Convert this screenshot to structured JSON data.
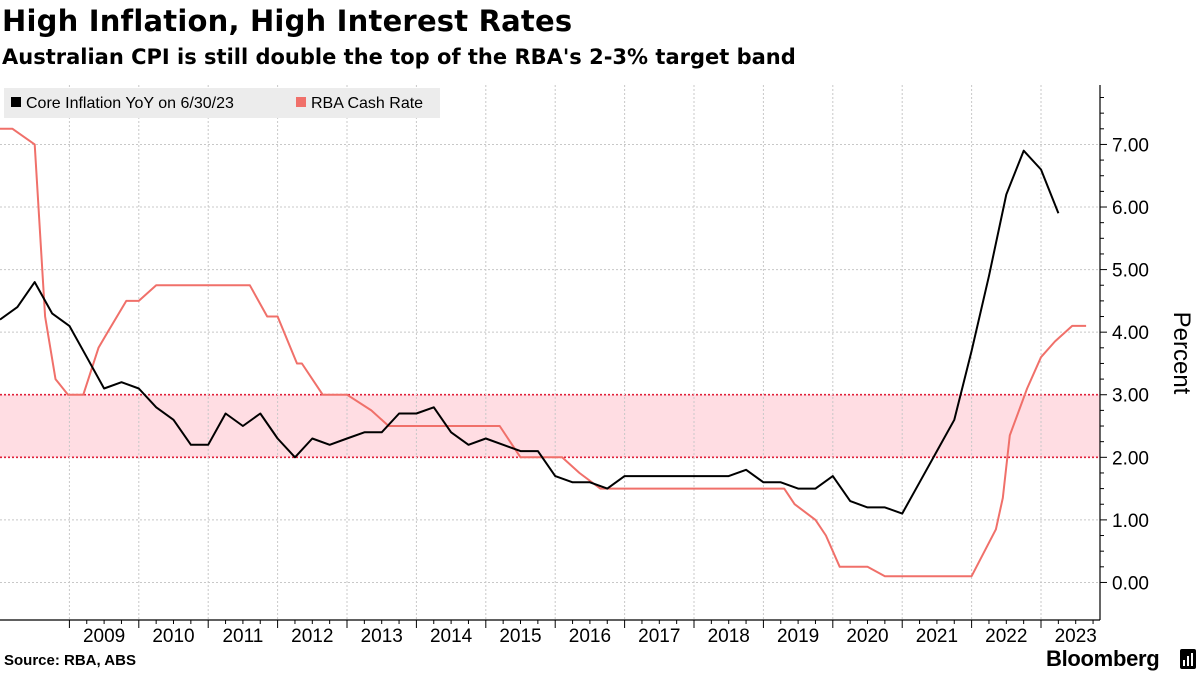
{
  "title": "High Inflation, High Interest Rates",
  "subtitle": "Australian CPI is still double the top of the RBA's 2-3% target band",
  "source": "Source: RBA, ABS",
  "brand": "Bloomberg",
  "colors": {
    "core_inflation": "#000000",
    "cash_rate": "#f0706a",
    "target_band": "#ffdde3",
    "target_band_edge": "#e0203a",
    "grid": "#c8c8c8",
    "legend_bg": "#ececec"
  },
  "chart_data": {
    "type": "line",
    "title": "High Inflation, High Interest Rates",
    "subtitle": "Australian CPI is still double the top of the RBA's 2-3% target band",
    "xlabel": "",
    "ylabel": "Percent",
    "ylim": [
      -0.6,
      7.95
    ],
    "xlim": [
      2008.0,
      2023.85
    ],
    "y_ticks": [
      0,
      1,
      2,
      3,
      4,
      5,
      6,
      7
    ],
    "y_tick_labels": [
      "0.00",
      "1.00",
      "2.00",
      "3.00",
      "4.00",
      "5.00",
      "6.00",
      "7.00"
    ],
    "x_ticks": [
      2009,
      2010,
      2011,
      2012,
      2013,
      2014,
      2015,
      2016,
      2017,
      2018,
      2019,
      2020,
      2021,
      2022,
      2023
    ],
    "x_tick_labels": [
      "2009",
      "2010",
      "2011",
      "2012",
      "2013",
      "2014",
      "2015",
      "2016",
      "2017",
      "2018",
      "2019",
      "2020",
      "2021",
      "2022",
      "2023"
    ],
    "y_axis_side": "right",
    "grid": true,
    "legend_position": "top-left",
    "target_band": [
      2,
      3
    ],
    "series": [
      {
        "name": "Core Inflation YoY on 6/30/23",
        "x": [
          2008.0,
          2008.25,
          2008.5,
          2008.75,
          2009.0,
          2009.25,
          2009.5,
          2009.75,
          2010.0,
          2010.25,
          2010.5,
          2010.75,
          2011.0,
          2011.25,
          2011.5,
          2011.75,
          2012.0,
          2012.25,
          2012.5,
          2012.75,
          2013.0,
          2013.25,
          2013.5,
          2013.75,
          2014.0,
          2014.25,
          2014.5,
          2014.75,
          2015.0,
          2015.25,
          2015.5,
          2015.75,
          2016.0,
          2016.25,
          2016.5,
          2016.75,
          2017.0,
          2017.25,
          2017.5,
          2017.75,
          2018.0,
          2018.25,
          2018.5,
          2018.75,
          2019.0,
          2019.25,
          2019.5,
          2019.75,
          2020.0,
          2020.25,
          2020.5,
          2020.75,
          2021.0,
          2021.25,
          2021.5,
          2021.75,
          2022.0,
          2022.25,
          2022.5,
          2022.75,
          2023.0,
          2023.25
        ],
        "y": [
          4.2,
          4.4,
          4.8,
          4.3,
          4.1,
          3.6,
          3.1,
          3.2,
          3.1,
          2.8,
          2.6,
          2.2,
          2.2,
          2.7,
          2.5,
          2.7,
          2.3,
          2.0,
          2.3,
          2.2,
          2.3,
          2.4,
          2.4,
          2.7,
          2.7,
          2.8,
          2.4,
          2.2,
          2.3,
          2.2,
          2.1,
          2.1,
          1.7,
          1.6,
          1.6,
          1.5,
          1.7,
          1.7,
          1.7,
          1.7,
          1.7,
          1.7,
          1.7,
          1.8,
          1.6,
          1.6,
          1.5,
          1.5,
          1.7,
          1.3,
          1.2,
          1.2,
          1.1,
          1.6,
          2.1,
          2.6,
          3.7,
          4.9,
          6.2,
          6.9,
          6.6,
          5.9
        ]
      },
      {
        "name": "RBA Cash Rate",
        "x": [
          2008.0,
          2008.18,
          2008.5,
          2008.65,
          2008.8,
          2008.98,
          2009.2,
          2009.42,
          2009.55,
          2009.82,
          2010.0,
          2010.25,
          2010.42,
          2010.8,
          2010.95,
          2011.6,
          2011.85,
          2012.0,
          2012.28,
          2012.35,
          2012.65,
          2012.75,
          2012.95,
          2013.0,
          2013.35,
          2013.6,
          2013.65,
          2014.2,
          2015.1,
          2015.2,
          2015.35,
          2015.5,
          2016.1,
          2016.35,
          2016.65,
          2016.8,
          2019.3,
          2019.45,
          2019.75,
          2019.9,
          2020.1,
          2020.2,
          2020.5,
          2020.75,
          2020.85,
          2021.3,
          2022.0,
          2022.35,
          2022.45,
          2022.55,
          2022.8,
          2023.0,
          2023.2,
          2023.45,
          2023.65
        ],
        "y": [
          7.25,
          7.25,
          7.0,
          4.25,
          3.25,
          3.0,
          3.0,
          3.75,
          4.0,
          4.5,
          4.5,
          4.75,
          4.75,
          4.75,
          4.75,
          4.75,
          4.25,
          4.25,
          3.5,
          3.5,
          3.0,
          3.0,
          3.0,
          3.0,
          2.75,
          2.5,
          2.5,
          2.5,
          2.5,
          2.5,
          2.25,
          2.0,
          2.0,
          1.75,
          1.5,
          1.5,
          1.5,
          1.25,
          1.0,
          0.75,
          0.25,
          0.25,
          0.25,
          0.1,
          0.1,
          0.1,
          0.1,
          0.85,
          1.35,
          2.35,
          3.1,
          3.6,
          3.85,
          4.1,
          4.1
        ]
      }
    ]
  }
}
